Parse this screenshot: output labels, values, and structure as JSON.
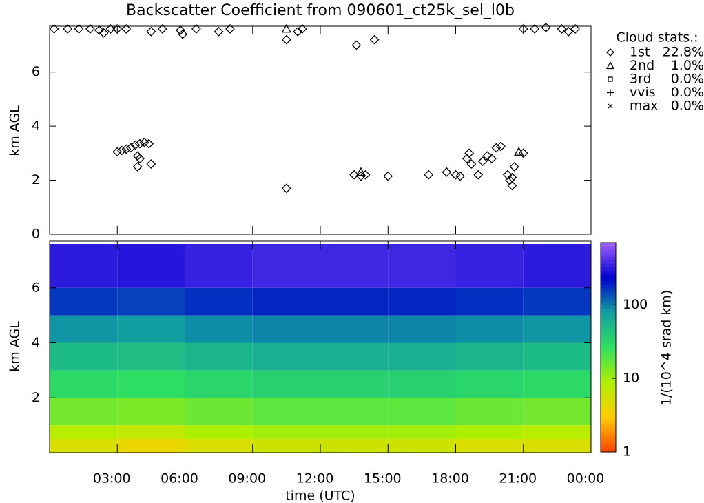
{
  "chart_data": [
    {
      "type": "scatter",
      "title": "Backscatter Coefficient from 090601_ct25k_sel_l0b",
      "y_label": "km AGL",
      "legend_title": "Cloud stats.:",
      "xlim": [
        0,
        24
      ],
      "ylim": [
        0,
        7.7
      ],
      "yticks": [
        0,
        2,
        4,
        6
      ],
      "xticks": [
        3,
        6,
        9,
        12,
        15,
        18,
        21,
        24
      ],
      "series": [
        {
          "name": "1st",
          "share_label": "22.8%",
          "marker": "diamond",
          "color": "#000000",
          "x": [
            0.2,
            0.8,
            1.3,
            1.8,
            2.2,
            2.4,
            2.7,
            3.0,
            3.4,
            4.5,
            5.0,
            5.8,
            5.9,
            6.5,
            7.5,
            8.0,
            10.5,
            11.0,
            11.2,
            13.6,
            14.4,
            21.0,
            21.5,
            22.0,
            22.7,
            23.0,
            23.3,
            3.0,
            3.2,
            3.4,
            3.6,
            3.8,
            4.0,
            4.2,
            4.4,
            3.9,
            4.0,
            3.9,
            4.5,
            10.5,
            13.5,
            13.8,
            14.0,
            15.0,
            16.8,
            17.6,
            18.0,
            18.2,
            18.5,
            18.6,
            18.7,
            19.0,
            19.2,
            19.4,
            19.6,
            19.8,
            20.0,
            20.3,
            20.4,
            20.5,
            20.6,
            20.5,
            21.0
          ],
          "y": [
            7.6,
            7.6,
            7.6,
            7.6,
            7.55,
            7.45,
            7.6,
            7.6,
            7.6,
            7.5,
            7.6,
            7.55,
            7.4,
            7.6,
            7.5,
            7.6,
            7.2,
            7.5,
            7.6,
            7.0,
            7.2,
            7.6,
            7.6,
            7.65,
            7.6,
            7.5,
            7.6,
            3.05,
            3.1,
            3.15,
            3.2,
            3.3,
            3.35,
            3.4,
            3.35,
            2.9,
            2.8,
            2.5,
            2.6,
            1.7,
            2.2,
            2.15,
            2.2,
            2.15,
            2.2,
            2.3,
            2.2,
            2.15,
            2.8,
            3.0,
            2.6,
            2.2,
            2.7,
            2.9,
            2.8,
            3.2,
            3.25,
            2.2,
            2.0,
            1.8,
            2.5,
            2.1,
            3.0
          ]
        },
        {
          "name": "2nd",
          "share_label": "1.0%",
          "marker": "triangle",
          "color": "#000000",
          "x": [
            10.5,
            13.8,
            20.8
          ],
          "y": [
            7.6,
            2.3,
            3.05
          ]
        },
        {
          "name": "3rd",
          "share_label": "0.0%",
          "marker": "square",
          "color": "#000000",
          "x": [],
          "y": []
        },
        {
          "name": "vvis",
          "share_label": "0.0%",
          "marker": "plus",
          "color": "#000000",
          "x": [],
          "y": []
        },
        {
          "name": "max",
          "share_label": "0.0%",
          "marker": "cross",
          "color": "#000000",
          "x": [],
          "y": []
        }
      ]
    },
    {
      "type": "heatmap",
      "y_label": "km AGL",
      "x_label": "time (UTC)",
      "colorbar_label": "1/(10^4 srad km)",
      "xlim": [
        0,
        24
      ],
      "ylim": [
        0,
        7.7
      ],
      "yticks": [
        2,
        4,
        6
      ],
      "xticks": [
        {
          "value": 3,
          "label": "03:00"
        },
        {
          "value": 6,
          "label": "06:00"
        },
        {
          "value": 9,
          "label": "09:00"
        },
        {
          "value": 12,
          "label": "12:00"
        },
        {
          "value": 15,
          "label": "15:00"
        },
        {
          "value": 18,
          "label": "18:00"
        },
        {
          "value": 21,
          "label": "21:00"
        },
        {
          "value": 24,
          "label": "00:00"
        }
      ],
      "x_edges": [
        0,
        3,
        6,
        9,
        12,
        15,
        18,
        21,
        24
      ],
      "y_edges": [
        0,
        0.5,
        1,
        2,
        3,
        4,
        5,
        6,
        7.6
      ],
      "z": [
        [
          5,
          4,
          5,
          6,
          6,
          6,
          5,
          5
        ],
        [
          8,
          7,
          9,
          10,
          10,
          10,
          9,
          8
        ],
        [
          15,
          14,
          16,
          18,
          18,
          18,
          16,
          15
        ],
        [
          30,
          28,
          32,
          35,
          35,
          35,
          32,
          30
        ],
        [
          50,
          48,
          55,
          60,
          60,
          60,
          55,
          50
        ],
        [
          85,
          80,
          90,
          95,
          95,
          95,
          90,
          85
        ],
        [
          160,
          150,
          170,
          180,
          180,
          180,
          170,
          160
        ],
        [
          320,
          300,
          340,
          360,
          360,
          360,
          340,
          320
        ]
      ],
      "clim": [
        1,
        700
      ],
      "log_scale": true,
      "colorbar_ticks": [
        1,
        10,
        100
      ],
      "colormap": [
        "#ff4000",
        "#ffcc00",
        "#b0f000",
        "#30e060",
        "#10a0a0",
        "#0000d0",
        "#a060ff"
      ]
    }
  ]
}
